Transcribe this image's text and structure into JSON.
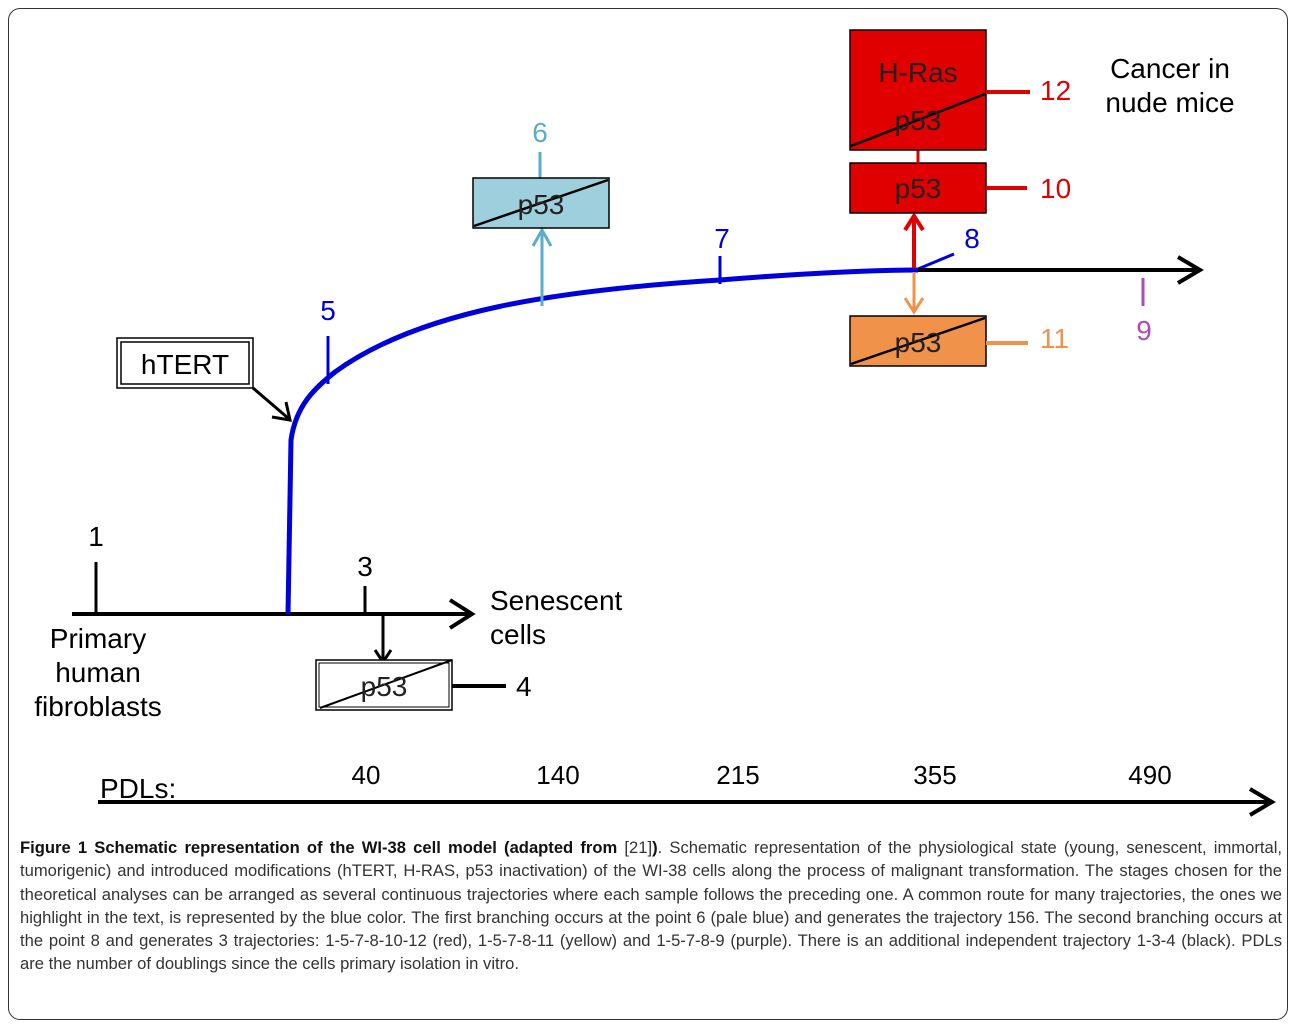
{
  "diagram": {
    "boxes": {
      "hTERT": "hTERT",
      "p53_6": "p53",
      "hras_top": "H-Ras",
      "hras_bottom": "p53",
      "p53_10": "p53",
      "p53_11": "p53",
      "p53_4": "p53"
    },
    "points": {
      "p1": "1",
      "p3": "3",
      "p4": "4",
      "p5": "5",
      "p6": "6",
      "p7": "7",
      "p8": "8",
      "p9": "9",
      "p10": "10",
      "p11": "11",
      "p12": "12"
    },
    "text_labels": {
      "senescent_line1": "Senescent",
      "senescent_line2": "cells",
      "primary_line1": "Primary",
      "primary_line2": "human",
      "primary_line3": "fibroblasts",
      "cancer_line1": "Cancer in",
      "cancer_line2": "nude mice"
    },
    "axis": {
      "label": "PDLs:",
      "ticks": [
        "40",
        "140",
        "215",
        "355",
        "490"
      ]
    },
    "colors": {
      "black": "#000000",
      "blue": "#0000dd",
      "pale_blue": "#5aaec8",
      "pale_blue_fill": "#9dcfdc",
      "red": "#e00000",
      "orange": "#f0924a",
      "purple": "#b04ab8"
    }
  },
  "caption": {
    "bold_prefix": "Figure 1 Schematic representation of the WI-38 cell model (adapted from ",
    "ref": "[21]",
    "bold_close": ")",
    "body": ". Schematic representation of the physiological state (young, senescent, immortal, tumorigenic) and introduced modifications (hTERT, H-RAS, p53 inactivation) of the WI-38 cells along the process of malignant transformation. The stages chosen for the theoretical analyses can be arranged as several continuous trajectories where each sample follows the preceding one. A common route for many trajectories, the ones we highlight in the text, is represented by the blue color. The first branching occurs at the point 6 (pale blue) and generates the trajectory 156. The second branching occurs at the point 8 and generates 3 trajectories: 1-5-7-8-10-12 (red), 1-5-7-8-11 (yellow) and 1-5-7-8-9 (purple). There is an additional independent trajectory 1-3-4 (black). PDLs are the number of doublings since the cells primary isolation in vitro."
  }
}
